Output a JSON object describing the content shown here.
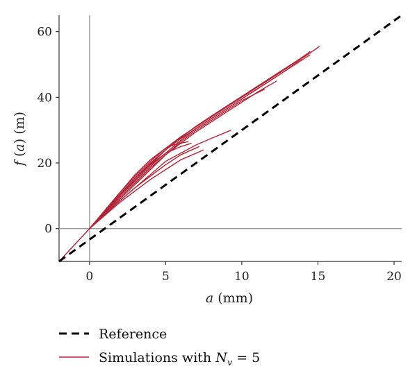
{
  "chart_data": {
    "type": "line",
    "xlim": [
      -2,
      20.5
    ],
    "ylim": [
      -10,
      65
    ],
    "xticks": [
      0,
      5,
      10,
      15,
      20
    ],
    "yticks": [
      0,
      20,
      40,
      60
    ],
    "xtick_labels": [
      "0",
      "5",
      "10",
      "15",
      "20"
    ],
    "ytick_labels": [
      "0",
      "20",
      "40",
      "60"
    ],
    "xlabel": {
      "var": "a",
      "unit": "(mm)"
    },
    "ylabel": {
      "func": "f",
      "paren_open": "(",
      "var": "a",
      "paren_close": ")",
      "unit": "(m)"
    },
    "legend": {
      "placement": "bottom-left, below plot",
      "reference_label": "Reference",
      "simulation_label_prefix": "Simulations with ",
      "simulation_label_var": "N",
      "simulation_label_sub": "v",
      "simulation_label_suffix": " = 5"
    },
    "colors": {
      "reference": "#000000",
      "simulation": "#b02437",
      "zero_lines": "#9a9a9a",
      "axes": "#333333"
    },
    "reference": {
      "name": "Reference",
      "x": [
        -2,
        20.5
      ],
      "y": [
        -10,
        65
      ]
    },
    "series": [
      {
        "x": [
          -2,
          0,
          1,
          2,
          3,
          4,
          5,
          6,
          7,
          8,
          9,
          10,
          11,
          12,
          13,
          14,
          15.1
        ],
        "y": [
          -10,
          0,
          5,
          10,
          15,
          19.5,
          24,
          27.5,
          30.5,
          33.5,
          36.5,
          39.5,
          42.5,
          45.5,
          48.5,
          52,
          55.5
        ]
      },
      {
        "x": [
          0,
          1,
          2,
          3,
          4,
          5,
          6,
          7,
          8,
          9,
          10,
          11,
          12,
          13,
          14.5
        ],
        "y": [
          0,
          5,
          10,
          14.5,
          19,
          23,
          27,
          30.5,
          33.5,
          36.5,
          39.5,
          42.5,
          45.5,
          48.5,
          53
        ]
      },
      {
        "x": [
          0,
          1,
          2,
          3,
          4,
          5,
          6,
          7,
          8,
          9,
          10,
          11,
          12,
          13,
          14.5
        ],
        "y": [
          0,
          5.5,
          11,
          16,
          20.5,
          24.5,
          28,
          31,
          34,
          37,
          40,
          43,
          46,
          49,
          54
        ]
      },
      {
        "x": [
          0,
          1,
          2,
          3,
          4,
          5,
          6,
          7,
          8,
          9,
          10,
          11,
          12.3
        ],
        "y": [
          0,
          4.8,
          9.5,
          14,
          18.5,
          22.5,
          26,
          29.5,
          32.5,
          35.5,
          38.5,
          41.5,
          45
        ]
      },
      {
        "x": [
          0,
          1,
          2,
          3,
          4,
          5,
          6,
          7,
          8,
          9,
          10,
          11.5
        ],
        "y": [
          0,
          4.5,
          9,
          13.5,
          18,
          22.5,
          26.5,
          30,
          33,
          36,
          39,
          42.5
        ]
      },
      {
        "x": [
          0,
          1,
          2,
          3,
          4,
          5,
          6,
          7,
          8,
          9.3
        ],
        "y": [
          0,
          4.5,
          8.5,
          12.5,
          16.5,
          20.5,
          23,
          25.5,
          27.5,
          30
        ]
      },
      {
        "x": [
          0,
          1,
          2,
          3,
          4,
          5,
          6,
          7.2
        ],
        "y": [
          0,
          4.3,
          8.5,
          12.5,
          16,
          19.5,
          22.5,
          25
        ]
      },
      {
        "x": [
          0,
          1,
          2,
          3,
          4,
          5,
          6,
          6.7
        ],
        "y": [
          0,
          5,
          10,
          15,
          19.5,
          23,
          25,
          26
        ]
      },
      {
        "x": [
          0,
          1,
          2,
          3,
          4,
          5,
          5.5,
          6.5
        ],
        "y": [
          0,
          5.5,
          11,
          16.5,
          21,
          24.5,
          25.5,
          26.5
        ]
      },
      {
        "x": [
          0,
          1,
          2,
          3,
          4,
          5,
          6,
          7.5
        ],
        "y": [
          0,
          4,
          8,
          11.5,
          15,
          18,
          21,
          24
        ]
      },
      {
        "x": [
          0,
          1,
          2,
          3,
          4,
          5,
          6,
          7,
          8
        ],
        "y": [
          0,
          5.2,
          10.5,
          15.5,
          20,
          24,
          27.5,
          30.5,
          33.5
        ]
      },
      {
        "x": [
          0,
          1,
          2,
          3,
          4,
          5,
          6,
          7,
          8,
          9,
          10,
          11,
          12,
          13,
          14
        ],
        "y": [
          0,
          5.1,
          10.2,
          15,
          19.8,
          24,
          27.8,
          31.2,
          34.3,
          37.3,
          40.3,
          43.3,
          46.3,
          49.3,
          52.3
        ]
      }
    ]
  }
}
